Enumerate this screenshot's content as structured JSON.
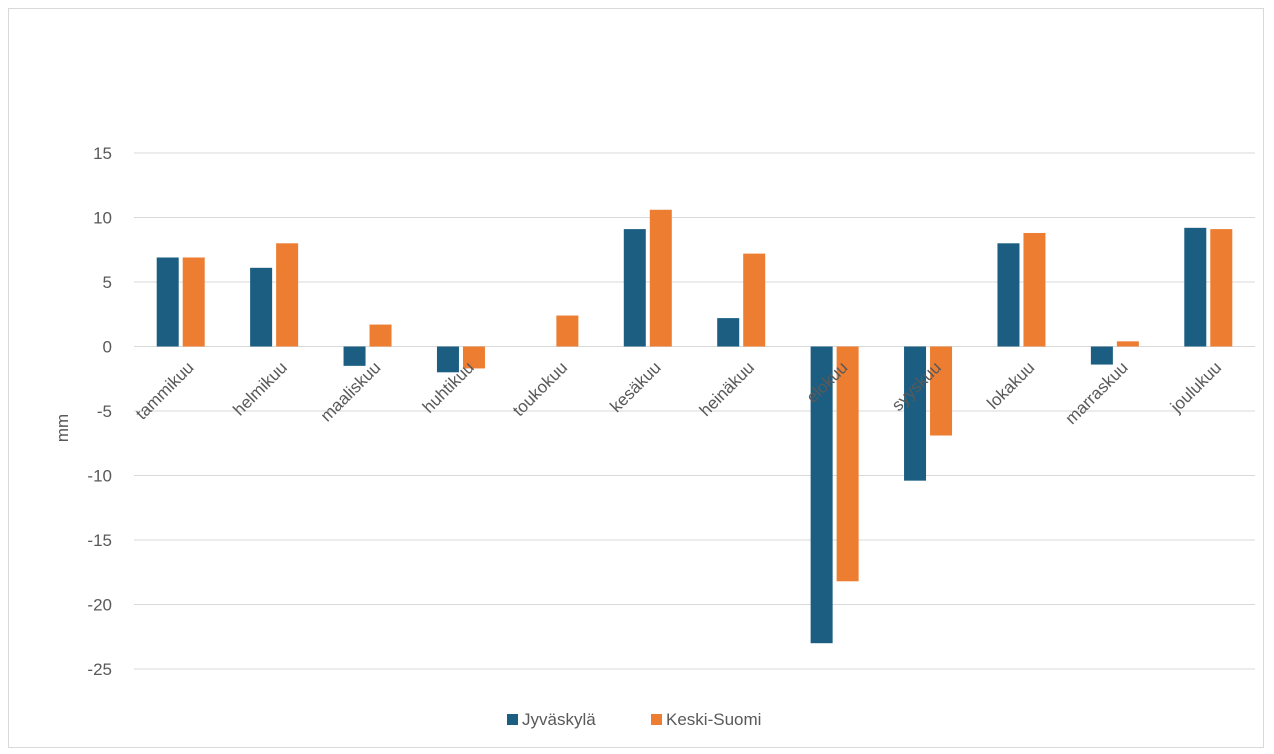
{
  "chart_data": {
    "type": "bar",
    "title": "",
    "xlabel": "",
    "ylabel": "mm",
    "ylim": [
      -25,
      15
    ],
    "yticks": [
      15,
      10,
      5,
      0,
      -5,
      -10,
      -15,
      -20,
      -25
    ],
    "ytick_labels": [
      "15",
      "10",
      "5",
      "0",
      "-5",
      "-10",
      "-15",
      "-20",
      "-25"
    ],
    "grid": true,
    "legend_position": "bottom",
    "categories": [
      "tammikuu",
      "helmikuu",
      "maaliskuu",
      "huhtikuu",
      "toukokuu",
      "kesäkuu",
      "heinäkuu",
      "elokuu",
      "syyskuu",
      "lokakuu",
      "marraskuu",
      "joulukuu"
    ],
    "series": [
      {
        "name": "Jyväskylä",
        "color": "#1b5e82",
        "values": [
          6.9,
          6.1,
          -1.5,
          -2.0,
          0,
          9.1,
          2.2,
          -23.0,
          -10.4,
          8.0,
          -1.4,
          9.2
        ]
      },
      {
        "name": "Keski-Suomi",
        "color": "#ed7d31",
        "values": [
          6.9,
          8.0,
          1.7,
          -1.7,
          2.4,
          10.6,
          7.2,
          -18.2,
          -6.9,
          8.8,
          0.4,
          9.1
        ]
      }
    ]
  }
}
